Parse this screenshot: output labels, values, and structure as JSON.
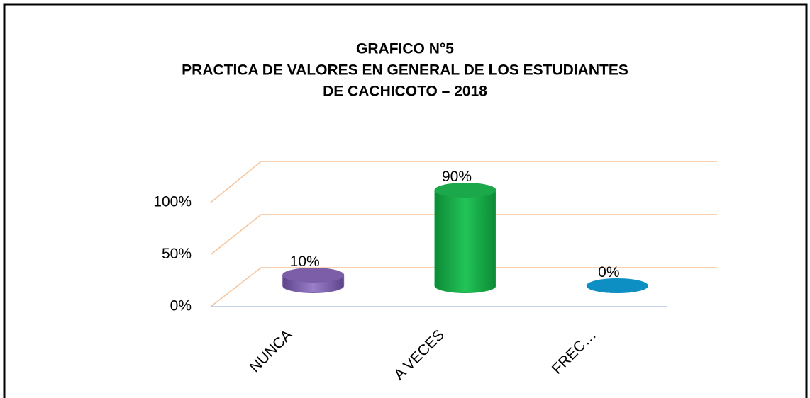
{
  "chart_data": {
    "type": "bar3d",
    "title": [
      "GRAFICO N°5",
      "PRACTICA DE VALORES EN GENERAL DE LOS ESTUDIANTES",
      "DE CACHICOTO – 2018"
    ],
    "categories": [
      "NUNCA",
      "A VECES",
      "FREC…"
    ],
    "values": [
      10,
      90,
      0
    ],
    "value_labels": [
      "10%",
      "90%",
      "0%"
    ],
    "colors": [
      "#7b5ea7",
      "#1aa84a",
      "#0e8fc4"
    ],
    "ylim": [
      0,
      100
    ],
    "yticks": [
      {
        "value": 0,
        "label": "0%"
      },
      {
        "value": 50,
        "label": "50%"
      },
      {
        "value": 100,
        "label": "100%"
      }
    ],
    "grid": true
  }
}
